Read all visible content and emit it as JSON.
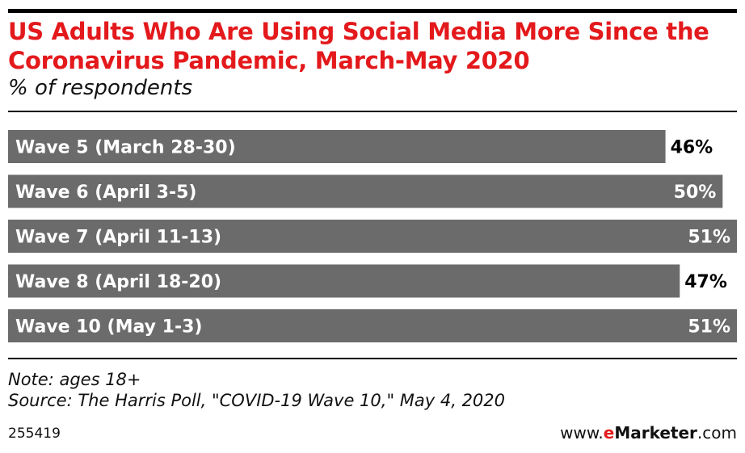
{
  "title": "US Adults Who Are Using Social Media More Since the Coronavirus Pandemic, March-May 2020",
  "subtitle": "% of respondents",
  "note": "Note: ages 18+",
  "source": "Source: The Harris Poll, \"COVID-19 Wave 10,\" May 4, 2020",
  "chart_id": "255419",
  "site": {
    "prefix": "www.",
    "brand_e": "e",
    "brand_rest": "Marketer",
    "suffix": ".com"
  },
  "colors": {
    "title": "#e3191c",
    "bar": "#6b6b6b",
    "bar_label": "#ffffff",
    "value_inside": "#ffffff",
    "value_outside": "#000000"
  },
  "chart_data": {
    "type": "bar",
    "orientation": "horizontal",
    "title": "US Adults Who Are Using Social Media More Since the Coronavirus Pandemic, March-May 2020",
    "subtitle": "% of respondents",
    "categories": [
      "Wave 5 (March 28-30)",
      "Wave 6 (April 3-5)",
      "Wave 7 (April 11-13)",
      "Wave 8 (April 18-20)",
      "Wave 10 (May 1-3)"
    ],
    "values": [
      46,
      50,
      51,
      47,
      51
    ],
    "value_labels": [
      "46%",
      "50%",
      "51%",
      "47%",
      "51%"
    ],
    "xlim": [
      0,
      51
    ],
    "grid": false,
    "legend": "none"
  }
}
